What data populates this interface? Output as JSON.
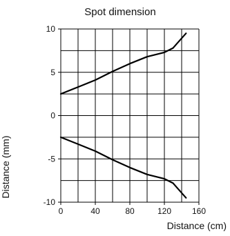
{
  "chart_data": {
    "type": "line",
    "title": "Spot dimension",
    "xlabel": "Distance (cm)",
    "ylabel": "Distance (mm)",
    "xlim": [
      0,
      160
    ],
    "ylim": [
      -10,
      10
    ],
    "grid": true,
    "x_ticks": [
      0,
      40,
      80,
      120,
      160
    ],
    "x_tick_labels": [
      "0",
      "40",
      "80",
      "120",
      "160"
    ],
    "y_ticks": [
      -10,
      -5,
      0,
      5,
      10
    ],
    "y_tick_labels": [
      "-10",
      "-5",
      "0",
      "5",
      "10"
    ],
    "series": [
      {
        "x": [
          0,
          20,
          40,
          60,
          80,
          100,
          120,
          130,
          145
        ],
        "y": [
          2.5,
          3.3,
          4.1,
          5.1,
          6.0,
          6.8,
          7.3,
          7.8,
          9.5
        ]
      },
      {
        "x": [
          0,
          20,
          40,
          60,
          80,
          100,
          120,
          130,
          145
        ],
        "y": [
          -2.5,
          -3.3,
          -4.1,
          -5.1,
          -6.0,
          -6.8,
          -7.3,
          -7.8,
          -9.5
        ]
      }
    ],
    "line_color": "#000000",
    "grid_color": "#000000"
  }
}
